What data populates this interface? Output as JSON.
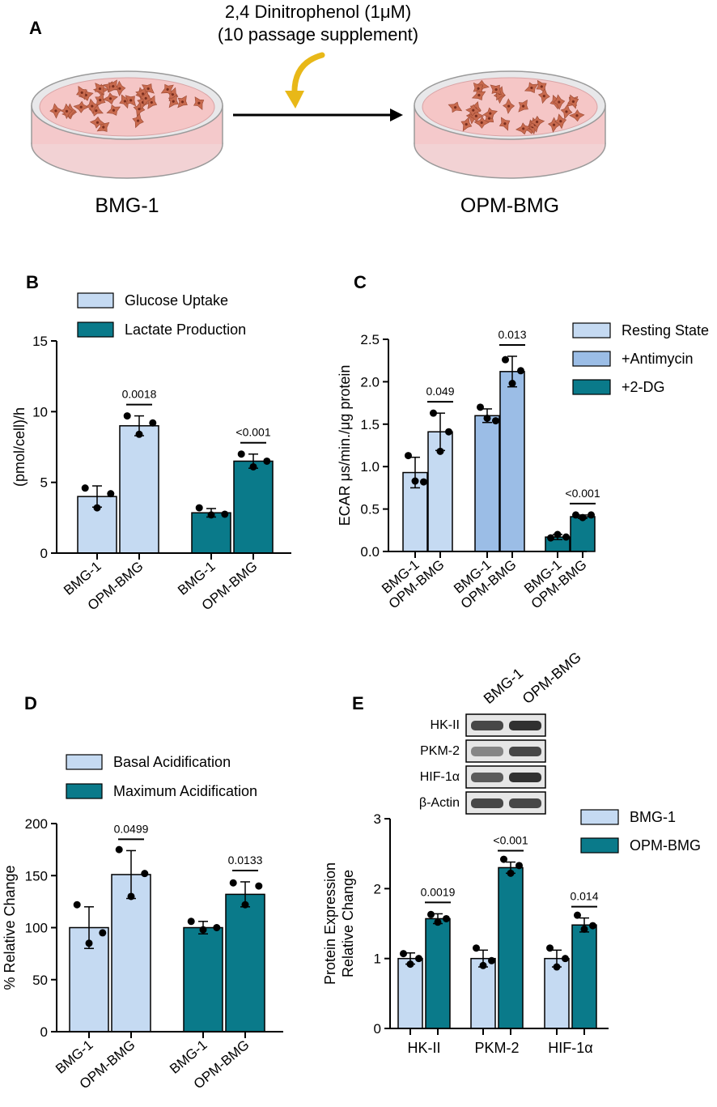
{
  "panel_a": {
    "label": "A",
    "treatment_line1": "2,4 Dinitrophenol (1μM)",
    "treatment_line2": "(10 passage supplement)",
    "left_dish_label": "BMG-1",
    "right_dish_label": "OPM-BMG"
  },
  "colors": {
    "light_blue": "#c5daf2",
    "mid_blue": "#9bbde6",
    "teal": "#0a7a8a",
    "dish_pink": "#f5c6c6",
    "cell": "#c86a4e",
    "arrow_yellow": "#e8b818"
  },
  "chart_data": [
    {
      "panel": "B",
      "type": "bar",
      "ylabel": "(pmol/cell)/h",
      "ylim": [
        0,
        15
      ],
      "yticks": [
        "0",
        "5",
        "10",
        "15"
      ],
      "categories": [
        "BMG-1",
        "OPM-BMG",
        "BMG-1",
        "OPM-BMG"
      ],
      "legend": [
        "Glucose Uptake",
        "Lactate Production"
      ],
      "groups": [
        {
          "name": "Glucose Uptake",
          "bars": [
            {
              "value": 4.0,
              "sd": 0.75,
              "points": [
                4.6,
                3.2,
                4.2
              ]
            },
            {
              "value": 9.0,
              "sd": 0.7,
              "points": [
                9.7,
                8.4,
                9.2
              ]
            }
          ],
          "pvalue": "0.0018"
        },
        {
          "name": "Lactate Production",
          "bars": [
            {
              "value": 2.85,
              "sd": 0.3,
              "points": [
                3.2,
                2.7,
                2.75
              ]
            },
            {
              "value": 6.5,
              "sd": 0.5,
              "points": [
                7.0,
                6.1,
                6.5
              ]
            }
          ],
          "pvalue": "<0.001"
        }
      ]
    },
    {
      "panel": "C",
      "type": "bar",
      "ylabel": "ECAR μs/min./μg protein",
      "ylim": [
        0,
        2.5
      ],
      "yticks": [
        "0.0",
        "0.5",
        "1.0",
        "1.5",
        "2.0",
        "2.5"
      ],
      "categories": [
        "BMG-1",
        "OPM-BMG",
        "BMG-1",
        "OPM-BMG",
        "BMG-1",
        "OPM-BMG"
      ],
      "legend": [
        "Resting State",
        "+Antimycin",
        "+2-DG"
      ],
      "groups": [
        {
          "name": "Resting State",
          "bars": [
            {
              "value": 0.93,
              "sd": 0.18,
              "points": [
                1.13,
                0.83,
                0.82
              ]
            },
            {
              "value": 1.41,
              "sd": 0.22,
              "points": [
                1.63,
                1.18,
                1.41
              ]
            }
          ],
          "pvalue": "0.049"
        },
        {
          "name": "+Antimycin",
          "bars": [
            {
              "value": 1.6,
              "sd": 0.08,
              "points": [
                1.7,
                1.57,
                1.54
              ]
            },
            {
              "value": 2.12,
              "sd": 0.18,
              "points": [
                2.26,
                1.98,
                2.13
              ]
            }
          ],
          "pvalue": "0.013"
        },
        {
          "name": "+2-DG",
          "bars": [
            {
              "value": 0.17,
              "sd": 0.03,
              "points": [
                0.16,
                0.2,
                0.17
              ]
            },
            {
              "value": 0.41,
              "sd": 0.02,
              "points": [
                0.43,
                0.4,
                0.43
              ]
            }
          ],
          "pvalue": "<0.001"
        }
      ]
    },
    {
      "panel": "D",
      "type": "bar",
      "ylabel": "% Relative Change",
      "ylim": [
        0,
        200
      ],
      "yticks": [
        "0",
        "50",
        "100",
        "150",
        "200"
      ],
      "categories": [
        "BMG-1",
        "OPM-BMG",
        "BMG-1",
        "OPM-BMG"
      ],
      "legend": [
        "Basal Acidification",
        "Maximum Acidification"
      ],
      "groups": [
        {
          "name": "Basal Acidification",
          "bars": [
            {
              "value": 100,
              "sd": 20,
              "points": [
                122,
                85,
                95
              ]
            },
            {
              "value": 151,
              "sd": 23,
              "points": [
                175,
                130,
                152
              ]
            }
          ],
          "pvalue": "0.0499"
        },
        {
          "name": "Maximum Acidification",
          "bars": [
            {
              "value": 100,
              "sd": 6,
              "points": [
                106,
                98,
                100
              ]
            },
            {
              "value": 132,
              "sd": 12,
              "points": [
                143,
                122,
                140
              ]
            }
          ],
          "pvalue": "0.0133"
        }
      ]
    },
    {
      "panel": "E",
      "type": "bar",
      "ylabel": "Protein Expression Relative Change",
      "ylim": [
        0,
        3
      ],
      "yticks": [
        "0",
        "1",
        "2",
        "3"
      ],
      "categories": [
        "HK-II",
        "PKM-2",
        "HIF-1α"
      ],
      "legend": [
        "BMG-1",
        "OPM-BMG"
      ],
      "groups": [
        {
          "name": "HK-II",
          "bars": [
            {
              "value": 1.0,
              "sd": 0.08,
              "points": [
                1.07,
                0.92,
                1.0
              ]
            },
            {
              "value": 1.57,
              "sd": 0.07,
              "points": [
                1.63,
                1.52,
                1.57
              ]
            }
          ],
          "pvalue": "0.0019"
        },
        {
          "name": "PKM-2",
          "bars": [
            {
              "value": 1.0,
              "sd": 0.12,
              "points": [
                1.15,
                0.9,
                0.97
              ]
            },
            {
              "value": 2.3,
              "sd": 0.08,
              "points": [
                2.42,
                2.22,
                2.33
              ]
            }
          ],
          "pvalue": "<0.001"
        },
        {
          "name": "HIF-1α",
          "bars": [
            {
              "value": 1.0,
              "sd": 0.12,
              "points": [
                1.15,
                0.88,
                1.0
              ]
            },
            {
              "value": 1.48,
              "sd": 0.1,
              "points": [
                1.62,
                1.42,
                1.47
              ]
            }
          ],
          "pvalue": "0.014"
        }
      ],
      "blot": {
        "lanes": [
          "BMG-1",
          "OPM-BMG"
        ],
        "proteins": [
          "HK-II",
          "PKM-2",
          "HIF-1α",
          "β-Actin"
        ]
      }
    }
  ]
}
